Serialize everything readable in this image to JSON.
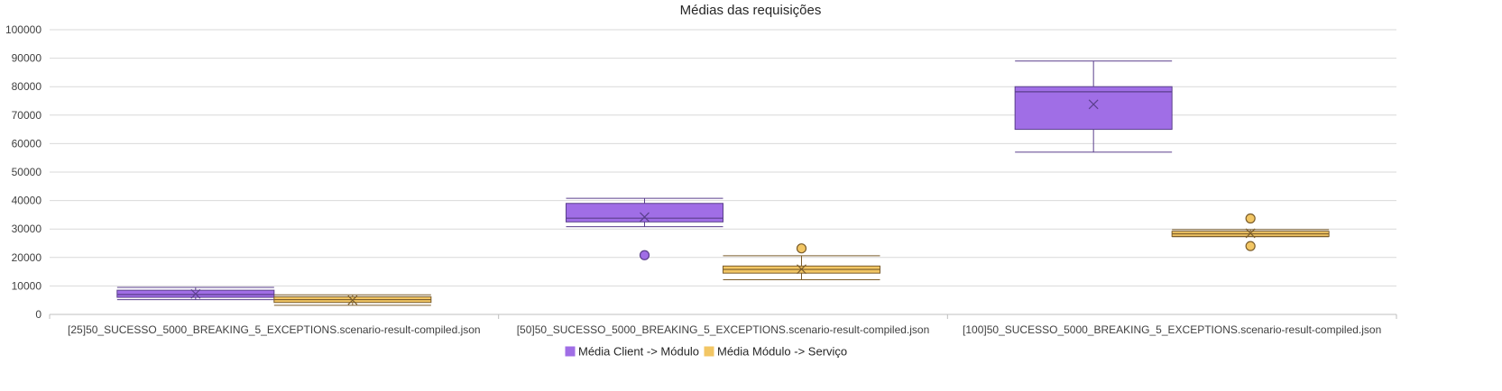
{
  "chart_data": {
    "type": "box",
    "title": "Médias das requisições",
    "ylim": [
      0,
      100000
    ],
    "yticks": [
      0,
      10000,
      20000,
      30000,
      40000,
      50000,
      60000,
      70000,
      80000,
      90000,
      100000
    ],
    "grid": true,
    "legend_position": "bottom",
    "categories": [
      "[25]50_SUCESSO_5000_BREAKING_5_EXCEPTIONS.scenario-result-compiled.json",
      "[50]50_SUCESSO_5000_BREAKING_5_EXCEPTIONS.scenario-result-compiled.json",
      "[100]50_SUCESSO_5000_BREAKING_5_EXCEPTIONS.scenario-result-compiled.json"
    ],
    "series": [
      {
        "name": "Média Client -> Módulo",
        "color": "#a06ee6",
        "stroke": "#5a3f8c",
        "boxes": [
          {
            "min": 5200,
            "q1": 6000,
            "median": 7000,
            "q3": 8500,
            "max": 9500,
            "mean": 7200,
            "outliers": []
          },
          {
            "min": 30800,
            "q1": 32500,
            "median": 33800,
            "q3": 39000,
            "max": 40800,
            "mean": 34200,
            "outliers": [
              20800
            ]
          },
          {
            "min": 57000,
            "q1": 65000,
            "median": 78200,
            "q3": 80000,
            "max": 89000,
            "mean": 73800,
            "outliers": []
          }
        ]
      },
      {
        "name": "Média Módulo -> Serviço",
        "color": "#f2c664",
        "stroke": "#7a5c2a",
        "boxes": [
          {
            "min": 3200,
            "q1": 4200,
            "median": 5200,
            "q3": 6200,
            "max": 6900,
            "mean": 5000,
            "outliers": []
          },
          {
            "min": 12200,
            "q1": 14500,
            "median": 15800,
            "q3": 17000,
            "max": 20600,
            "mean": 15900,
            "outliers": [
              23200
            ]
          },
          {
            "min": 27300,
            "q1": 27400,
            "median": 28300,
            "q3": 29200,
            "max": 29800,
            "mean": 28500,
            "outliers": [
              33700,
              24000
            ]
          }
        ]
      }
    ]
  }
}
